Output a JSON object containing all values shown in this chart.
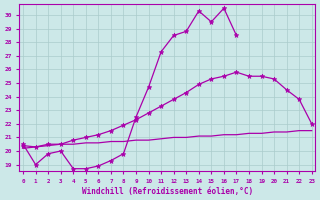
{
  "bg_color": "#cce8e8",
  "line_color": "#aa00aa",
  "grid_color": "#aacccc",
  "xlabel": "Windchill (Refroidissement éolien,°C)",
  "line1_x": [
    0,
    1,
    2,
    3,
    4,
    5,
    6,
    7,
    8,
    9,
    10,
    11,
    12,
    13,
    14,
    15,
    16,
    17
  ],
  "line1_y": [
    20.5,
    19.0,
    19.8,
    20.0,
    18.7,
    18.7,
    18.9,
    19.3,
    19.8,
    22.5,
    24.7,
    27.3,
    28.5,
    28.8,
    30.3,
    29.5,
    30.5,
    28.5
  ],
  "line2_x": [
    0,
    1,
    2,
    3,
    4,
    5,
    6,
    7,
    8,
    9,
    10,
    11,
    12,
    13,
    14,
    15,
    16,
    17,
    18,
    19,
    20,
    21,
    22,
    23
  ],
  "line2_y": [
    20.4,
    20.3,
    20.5,
    20.5,
    20.8,
    21.0,
    21.2,
    21.5,
    21.9,
    22.3,
    22.8,
    23.3,
    23.8,
    24.3,
    24.9,
    25.3,
    25.5,
    25.8,
    25.5,
    25.5,
    25.3,
    24.5,
    23.8,
    22.0
  ],
  "line3_x": [
    0,
    1,
    2,
    3,
    4,
    5,
    6,
    7,
    8,
    9,
    10,
    11,
    12,
    13,
    14,
    15,
    16,
    17,
    18,
    19,
    20,
    21,
    22,
    23
  ],
  "line3_y": [
    20.2,
    20.3,
    20.4,
    20.5,
    20.5,
    20.6,
    20.6,
    20.7,
    20.7,
    20.8,
    20.8,
    20.9,
    21.0,
    21.0,
    21.1,
    21.1,
    21.2,
    21.2,
    21.3,
    21.3,
    21.4,
    21.4,
    21.5,
    21.5
  ],
  "yticks": [
    19,
    20,
    21,
    22,
    23,
    24,
    25,
    26,
    27,
    28,
    29,
    30
  ],
  "xticks": [
    0,
    1,
    2,
    3,
    4,
    5,
    6,
    7,
    8,
    9,
    10,
    11,
    12,
    13,
    14,
    15,
    16,
    17,
    18,
    19,
    20,
    21,
    22,
    23
  ],
  "ylim": [
    18.5,
    30.8
  ],
  "xlim": [
    -0.3,
    23.3
  ]
}
